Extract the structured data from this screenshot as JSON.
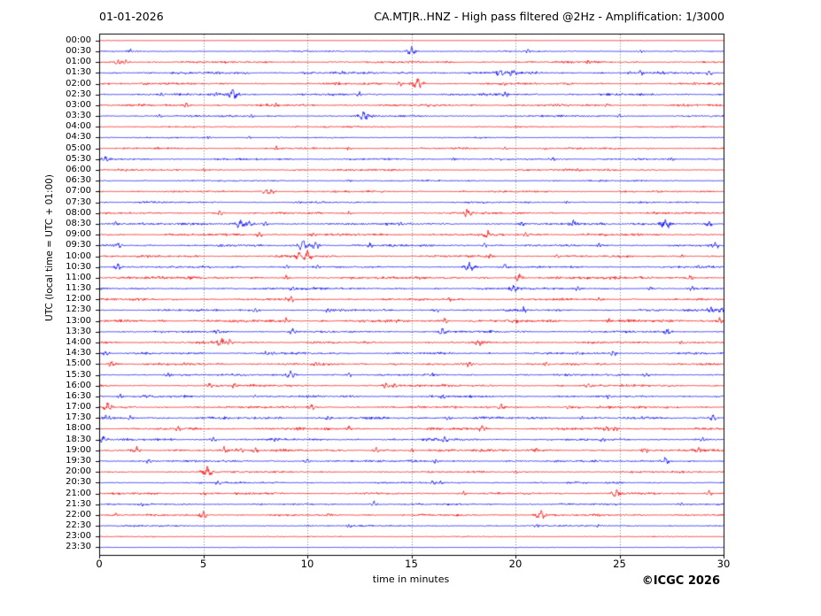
{
  "header": {
    "date": "01-01-2026",
    "title": "CA.MTJR..HNZ - High pass filtered @2Hz - Amplification: 1/3000"
  },
  "axes": {
    "x_label": "time in minutes",
    "y_label": "UTC (local time = UTC + 01:00)",
    "x_ticks": [
      0,
      5,
      10,
      15,
      20,
      25,
      30
    ],
    "x_range": [
      0,
      30
    ],
    "grid_minutes": [
      5,
      10,
      15,
      20,
      25
    ]
  },
  "footer": {
    "copyright": "©ICGC 2026"
  },
  "colors": {
    "trace_red": "#ff0000",
    "trace_blue": "#0000ff",
    "grid": "#555555",
    "frame": "#000000",
    "background": "#ffffff"
  },
  "chart_data": {
    "type": "line",
    "subtype": "helicorder-seismogram",
    "station": "CA.MTJR..HNZ",
    "date": "01-01-2026",
    "filter": "High pass filtered @2Hz",
    "amplification": "1/3000",
    "minutes_per_row": 30,
    "row_interval": "00:30",
    "utc_offset_note": "local time = UTC + 01:00",
    "xlabel": "time in minutes",
    "ylabel": "UTC (local time = UTC + 01:00)",
    "xlim": [
      0,
      30
    ],
    "grid": "vertical dotted at 5-minute intervals",
    "events_format": "[minute_offset, relative_amplitude_px]",
    "rows": [
      {
        "time": "00:00",
        "color": "#ff0000",
        "noise": 0.25,
        "events": [
          [
            25.3,
            1.2
          ]
        ]
      },
      {
        "time": "00:30",
        "color": "#0000ff",
        "noise": 0.7,
        "events": [
          [
            1.5,
            2.2
          ],
          [
            15.0,
            3.5
          ],
          [
            20.6,
            1.8
          ],
          [
            26.0,
            1.5
          ]
        ]
      },
      {
        "time": "01:00",
        "color": "#ff0000",
        "noise": 1.1,
        "events": [
          [
            0.9,
            2.5
          ],
          [
            1.3,
            2.0
          ],
          [
            23.5,
            1.5
          ]
        ]
      },
      {
        "time": "01:30",
        "color": "#0000ff",
        "noise": 1.4,
        "events": [
          [
            19.3,
            3.0
          ],
          [
            19.9,
            3.5
          ],
          [
            26.0,
            2.0
          ],
          [
            29.3,
            2.5
          ]
        ]
      },
      {
        "time": "02:00",
        "color": "#ff0000",
        "noise": 1.2,
        "events": [
          [
            14.4,
            2.5
          ],
          [
            15.3,
            4.5
          ],
          [
            19.4,
            2.0
          ],
          [
            28.6,
            1.5
          ]
        ]
      },
      {
        "time": "02:30",
        "color": "#0000ff",
        "noise": 1.2,
        "events": [
          [
            3.0,
            1.8
          ],
          [
            5.6,
            2.0
          ],
          [
            6.4,
            4.5
          ],
          [
            12.5,
            2.0
          ],
          [
            19.5,
            2.2
          ]
        ]
      },
      {
        "time": "03:00",
        "color": "#ff0000",
        "noise": 1.2,
        "events": [
          [
            4.2,
            2.5
          ],
          [
            8.5,
            1.5
          ],
          [
            24.4,
            1.8
          ]
        ]
      },
      {
        "time": "03:30",
        "color": "#0000ff",
        "noise": 1.0,
        "events": [
          [
            2.9,
            1.8
          ],
          [
            7.3,
            1.5
          ],
          [
            12.7,
            4.0
          ],
          [
            25.0,
            1.5
          ]
        ]
      },
      {
        "time": "04:00",
        "color": "#ff0000",
        "noise": 0.8,
        "events": [
          [
            9.5,
            1.2
          ],
          [
            20.0,
            1.2
          ]
        ]
      },
      {
        "time": "04:30",
        "color": "#0000ff",
        "noise": 0.7,
        "events": [
          [
            5.3,
            1.2
          ],
          [
            7.2,
            1.2
          ]
        ]
      },
      {
        "time": "05:00",
        "color": "#ff0000",
        "noise": 1.0,
        "events": [
          [
            8.5,
            1.5
          ],
          [
            12.0,
            1.3
          ],
          [
            19.5,
            1.5
          ],
          [
            21.5,
            1.3
          ]
        ]
      },
      {
        "time": "05:30",
        "color": "#0000ff",
        "noise": 1.0,
        "events": [
          [
            0.3,
            2.5
          ],
          [
            17.0,
            1.5
          ],
          [
            21.8,
            1.8
          ],
          [
            27.5,
            1.5
          ]
        ]
      },
      {
        "time": "06:00",
        "color": "#ff0000",
        "noise": 1.0,
        "events": [
          [
            5.0,
            1.2
          ],
          [
            23.0,
            1.5
          ]
        ]
      },
      {
        "time": "06:30",
        "color": "#0000ff",
        "noise": 0.8,
        "events": [
          [
            12.0,
            1.2
          ]
        ]
      },
      {
        "time": "07:00",
        "color": "#ff0000",
        "noise": 1.0,
        "events": [
          [
            8.0,
            3.0
          ],
          [
            8.3,
            2.5
          ]
        ]
      },
      {
        "time": "07:30",
        "color": "#0000ff",
        "noise": 0.9,
        "events": [
          [
            9.6,
            2.0
          ],
          [
            22.5,
            1.5
          ]
        ]
      },
      {
        "time": "08:00",
        "color": "#ff0000",
        "noise": 1.1,
        "events": [
          [
            5.8,
            2.2
          ],
          [
            12.0,
            1.5
          ],
          [
            17.7,
            3.5
          ]
        ]
      },
      {
        "time": "08:30",
        "color": "#0000ff",
        "noise": 1.2,
        "events": [
          [
            0.8,
            2.0
          ],
          [
            6.8,
            4.0
          ],
          [
            7.2,
            3.0
          ],
          [
            8.0,
            2.0
          ],
          [
            14.5,
            2.0
          ],
          [
            20.3,
            2.0
          ],
          [
            22.8,
            3.5
          ],
          [
            27.2,
            4.5
          ],
          [
            29.3,
            2.5
          ]
        ]
      },
      {
        "time": "09:00",
        "color": "#ff0000",
        "noise": 1.3,
        "events": [
          [
            7.7,
            2.5
          ],
          [
            10.3,
            2.0
          ],
          [
            18.7,
            3.0
          ],
          [
            20.5,
            2.0
          ]
        ]
      },
      {
        "time": "09:30",
        "color": "#0000ff",
        "noise": 1.2,
        "events": [
          [
            0.9,
            2.5
          ],
          [
            9.8,
            4.5
          ],
          [
            10.4,
            3.0
          ],
          [
            13.0,
            2.0
          ],
          [
            18.5,
            2.0
          ],
          [
            24.0,
            1.8
          ],
          [
            29.6,
            2.8
          ]
        ]
      },
      {
        "time": "10:00",
        "color": "#ff0000",
        "noise": 1.2,
        "events": [
          [
            9.6,
            3.0
          ],
          [
            10.0,
            4.5
          ],
          [
            18.8,
            2.0
          ],
          [
            22.0,
            1.8
          ],
          [
            28.0,
            1.5
          ]
        ]
      },
      {
        "time": "10:30",
        "color": "#0000ff",
        "noise": 1.1,
        "events": [
          [
            0.9,
            3.0
          ],
          [
            9.0,
            1.8
          ],
          [
            10.5,
            1.8
          ],
          [
            17.8,
            4.0
          ],
          [
            19.5,
            2.5
          ],
          [
            28.8,
            1.8
          ]
        ]
      },
      {
        "time": "11:00",
        "color": "#ff0000",
        "noise": 1.4,
        "events": [
          [
            9.0,
            1.8
          ],
          [
            20.2,
            3.0
          ],
          [
            22.0,
            2.0
          ],
          [
            28.4,
            2.5
          ]
        ]
      },
      {
        "time": "11:30",
        "color": "#0000ff",
        "noise": 1.2,
        "events": [
          [
            9.3,
            2.5
          ],
          [
            19.9,
            2.8
          ],
          [
            23.0,
            2.2
          ],
          [
            26.5,
            1.8
          ],
          [
            28.5,
            2.0
          ]
        ]
      },
      {
        "time": "12:00",
        "color": "#ff0000",
        "noise": 1.2,
        "events": [
          [
            9.2,
            3.0
          ],
          [
            16.8,
            1.8
          ],
          [
            24.0,
            1.5
          ]
        ]
      },
      {
        "time": "12:30",
        "color": "#0000ff",
        "noise": 1.2,
        "events": [
          [
            7.5,
            1.8
          ],
          [
            11.0,
            1.8
          ],
          [
            16.2,
            2.0
          ],
          [
            20.4,
            2.5
          ],
          [
            29.4,
            2.8
          ],
          [
            29.9,
            2.5
          ]
        ]
      },
      {
        "time": "13:00",
        "color": "#ff0000",
        "noise": 1.6,
        "events": [
          [
            9.0,
            2.0
          ],
          [
            16.6,
            2.5
          ],
          [
            24.5,
            2.0
          ],
          [
            29.8,
            2.5
          ]
        ]
      },
      {
        "time": "13:30",
        "color": "#0000ff",
        "noise": 1.1,
        "events": [
          [
            5.7,
            2.0
          ],
          [
            9.3,
            2.5
          ],
          [
            16.5,
            3.0
          ],
          [
            27.3,
            2.8
          ]
        ]
      },
      {
        "time": "14:00",
        "color": "#ff0000",
        "noise": 1.2,
        "events": [
          [
            5.9,
            4.0
          ],
          [
            6.3,
            3.0
          ],
          [
            18.2,
            2.5
          ],
          [
            28.0,
            1.8
          ]
        ]
      },
      {
        "time": "14:30",
        "color": "#0000ff",
        "noise": 1.1,
        "events": [
          [
            0.3,
            2.5
          ],
          [
            8.0,
            2.2
          ],
          [
            8.4,
            2.0
          ],
          [
            23.0,
            1.8
          ],
          [
            24.7,
            2.5
          ]
        ]
      },
      {
        "time": "15:00",
        "color": "#ff0000",
        "noise": 1.3,
        "events": [
          [
            0.6,
            2.8
          ],
          [
            10.4,
            2.0
          ],
          [
            17.8,
            2.2
          ],
          [
            21.5,
            2.0
          ]
        ]
      },
      {
        "time": "15:30",
        "color": "#0000ff",
        "noise": 1.1,
        "events": [
          [
            3.3,
            2.0
          ],
          [
            9.2,
            3.5
          ],
          [
            12.0,
            2.0
          ],
          [
            16.0,
            1.8
          ],
          [
            26.3,
            2.2
          ]
        ]
      },
      {
        "time": "16:00",
        "color": "#ff0000",
        "noise": 1.2,
        "events": [
          [
            5.3,
            2.0
          ],
          [
            6.5,
            2.5
          ],
          [
            13.8,
            2.5
          ],
          [
            14.2,
            2.0
          ],
          [
            23.5,
            2.2
          ]
        ]
      },
      {
        "time": "16:30",
        "color": "#0000ff",
        "noise": 1.2,
        "events": [
          [
            1.0,
            2.0
          ],
          [
            7.5,
            1.8
          ],
          [
            16.5,
            1.8
          ],
          [
            24.5,
            1.5
          ]
        ]
      },
      {
        "time": "17:00",
        "color": "#ff0000",
        "noise": 1.3,
        "events": [
          [
            0.4,
            3.5
          ],
          [
            10.2,
            2.5
          ],
          [
            19.3,
            2.8
          ],
          [
            22.6,
            2.0
          ]
        ]
      },
      {
        "time": "17:30",
        "color": "#0000ff",
        "noise": 1.3,
        "events": [
          [
            0.3,
            2.5
          ],
          [
            1.5,
            2.0
          ],
          [
            8.7,
            2.0
          ],
          [
            11.0,
            1.8
          ],
          [
            16.8,
            2.0
          ],
          [
            23.2,
            1.8
          ],
          [
            29.5,
            2.5
          ]
        ]
      },
      {
        "time": "18:00",
        "color": "#ff0000",
        "noise": 1.3,
        "events": [
          [
            3.8,
            2.0
          ],
          [
            12.0,
            2.2
          ],
          [
            18.4,
            3.0
          ],
          [
            24.4,
            2.8
          ],
          [
            24.8,
            2.2
          ]
        ]
      },
      {
        "time": "18:30",
        "color": "#0000ff",
        "noise": 1.2,
        "events": [
          [
            0.2,
            2.8
          ],
          [
            5.5,
            2.2
          ],
          [
            8.5,
            1.8
          ],
          [
            16.6,
            2.8
          ],
          [
            24.2,
            2.2
          ],
          [
            29.0,
            2.0
          ]
        ]
      },
      {
        "time": "19:00",
        "color": "#ff0000",
        "noise": 1.4,
        "events": [
          [
            1.8,
            3.0
          ],
          [
            6.0,
            2.5
          ],
          [
            6.8,
            2.2
          ],
          [
            7.5,
            2.0
          ],
          [
            13.3,
            2.5
          ],
          [
            15.0,
            2.0
          ],
          [
            21.0,
            1.8
          ],
          [
            26.2,
            2.2
          ],
          [
            28.8,
            2.8
          ]
        ]
      },
      {
        "time": "19:30",
        "color": "#0000ff",
        "noise": 1.1,
        "events": [
          [
            2.4,
            1.8
          ],
          [
            10.0,
            2.0
          ],
          [
            16.2,
            2.0
          ],
          [
            27.2,
            3.5
          ]
        ]
      },
      {
        "time": "20:00",
        "color": "#ff0000",
        "noise": 1.0,
        "events": [
          [
            5.2,
            4.5
          ],
          [
            20.0,
            1.5
          ]
        ]
      },
      {
        "time": "20:30",
        "color": "#0000ff",
        "noise": 1.0,
        "events": [
          [
            5.7,
            2.0
          ],
          [
            16.0,
            2.5
          ],
          [
            16.4,
            2.2
          ]
        ]
      },
      {
        "time": "21:00",
        "color": "#ff0000",
        "noise": 1.2,
        "events": [
          [
            5.0,
            1.8
          ],
          [
            17.5,
            2.0
          ],
          [
            24.9,
            4.0
          ],
          [
            29.3,
            2.2
          ]
        ]
      },
      {
        "time": "21:30",
        "color": "#0000ff",
        "noise": 1.0,
        "events": [
          [
            2.0,
            1.5
          ],
          [
            13.2,
            2.5
          ],
          [
            28.0,
            1.8
          ]
        ]
      },
      {
        "time": "22:00",
        "color": "#ff0000",
        "noise": 1.1,
        "events": [
          [
            0.8,
            1.8
          ],
          [
            5.0,
            2.8
          ],
          [
            11.0,
            1.8
          ],
          [
            21.2,
            4.2
          ]
        ]
      },
      {
        "time": "22:30",
        "color": "#0000ff",
        "noise": 0.9,
        "events": [
          [
            12.0,
            1.5
          ],
          [
            21.0,
            1.5
          ],
          [
            24.0,
            1.5
          ]
        ]
      },
      {
        "time": "23:00",
        "color": "#ff0000",
        "noise": 0.55,
        "events": []
      },
      {
        "time": "23:30",
        "color": "#0000ff",
        "noise": 0.35,
        "events": []
      }
    ]
  }
}
